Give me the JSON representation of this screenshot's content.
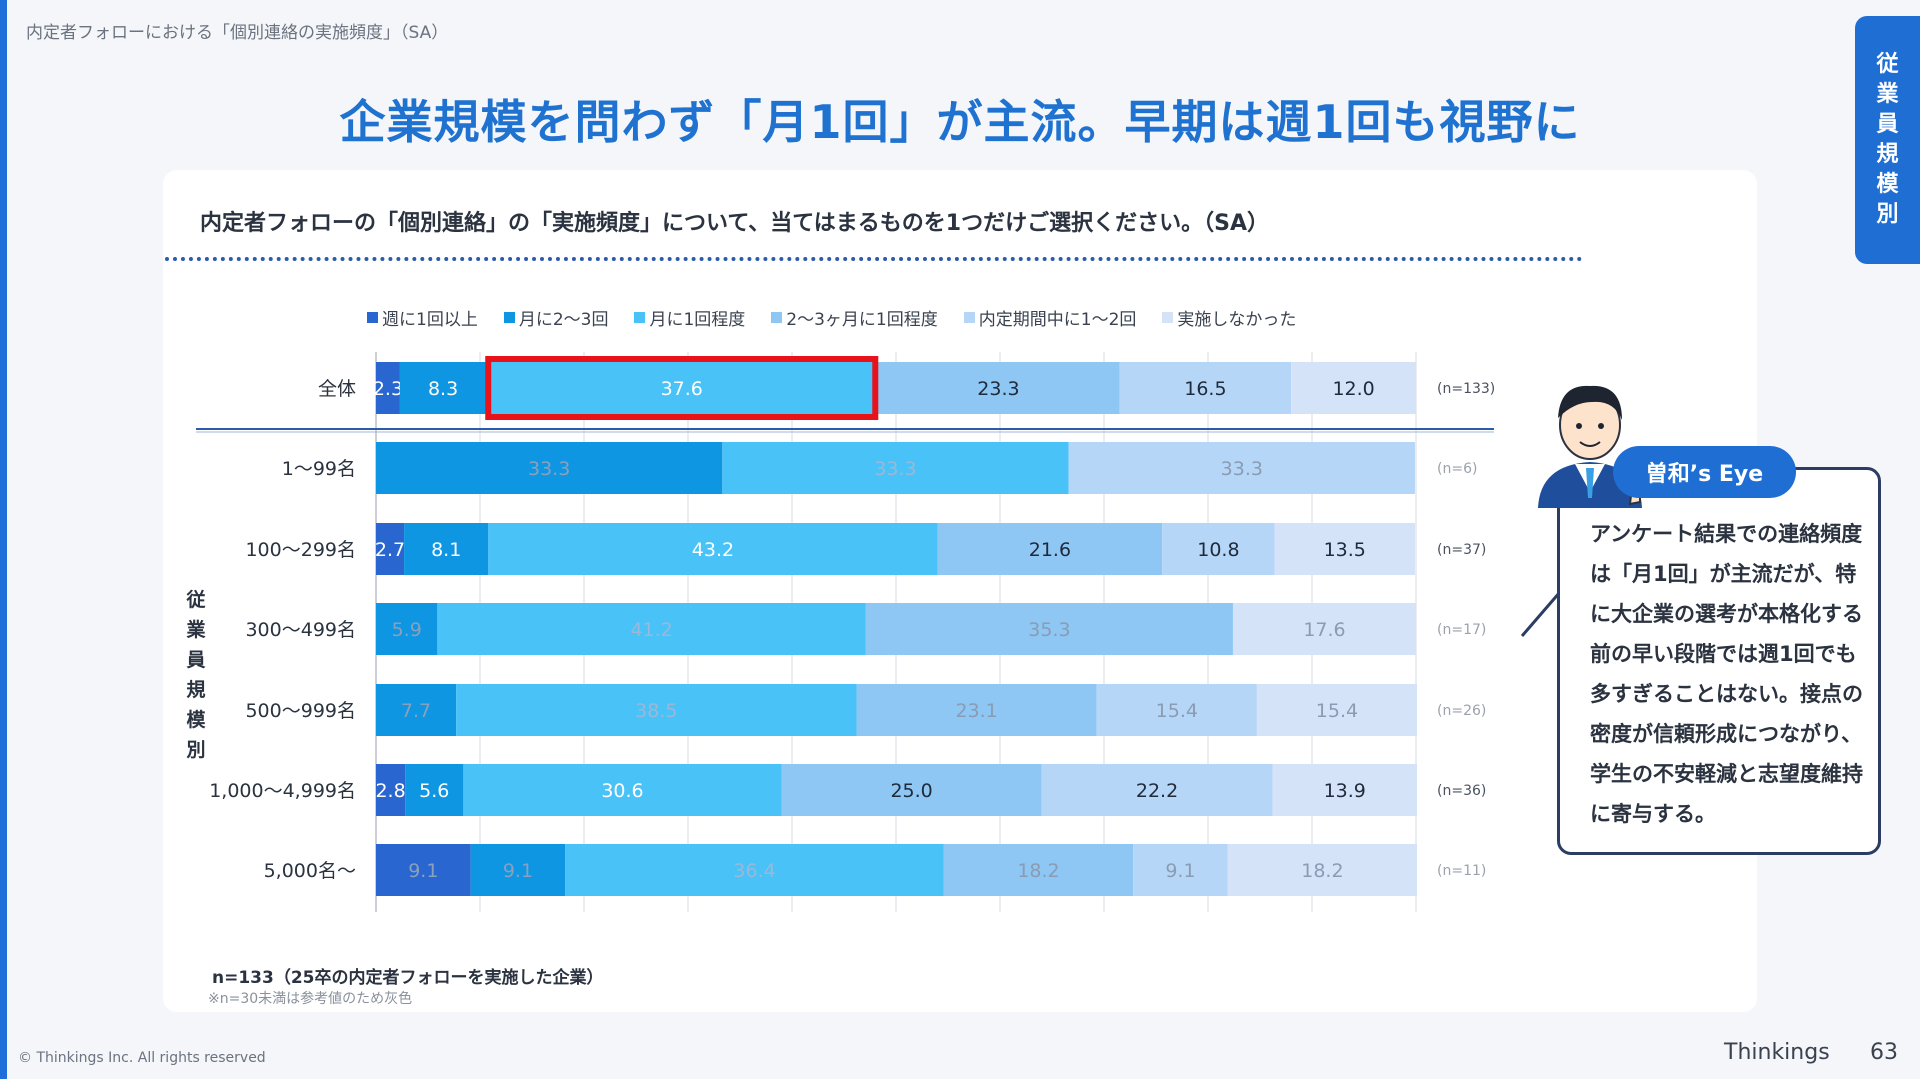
{
  "breadcrumb": "内定者フォローにおける「個別連絡の実施頻度」（SA）",
  "headline": "企業規模を問わず「月1回」が主流。早期は週1回も視野に",
  "side_tab": [
    "従",
    "業",
    "員",
    "規",
    "模",
    "別"
  ],
  "question": "内定者フォローの「個別連絡」の「実施頻度」について、当てはまるものを1つだけご選択ください。（SA）",
  "segment_label": [
    "従",
    "業",
    "員",
    "規",
    "模",
    "別"
  ],
  "colors": [
    "#2a66cf",
    "#0f96e2",
    "#49c2f8",
    "#8ec6f4",
    "#b6d6f8",
    "#d5e3f8"
  ],
  "chart_data": {
    "type": "bar",
    "orientation": "horizontal",
    "stacked": true,
    "xlim": [
      0,
      100
    ],
    "categories": [
      "全体",
      "1～99名",
      "100～299名",
      "300～499名",
      "500～999名",
      "1,000～4,999名",
      "5,000名～"
    ],
    "n_labels": [
      "(n=133)",
      "(n=6)",
      "(n=37)",
      "(n=17)",
      "(n=26)",
      "(n=36)",
      "(n=11)"
    ],
    "reference_value": [
      false,
      true,
      false,
      true,
      true,
      false,
      true
    ],
    "highlight": {
      "category": "全体",
      "series": "月に1回程度"
    },
    "series": [
      {
        "name": "週に1回以上",
        "values": [
          2.3,
          0,
          2.7,
          0,
          0,
          2.8,
          9.1
        ],
        "labels": [
          "2.3",
          "",
          "2.7",
          "",
          "",
          "2.8",
          "9.1"
        ]
      },
      {
        "name": "月に2～3回",
        "values": [
          8.3,
          33.3,
          8.1,
          5.9,
          7.7,
          5.6,
          9.1
        ],
        "labels": [
          "8.3",
          "33.3",
          "8.1",
          "5.9",
          "7.7",
          "5.6",
          "9.1"
        ]
      },
      {
        "name": "月に1回程度",
        "values": [
          37.6,
          33.3,
          43.2,
          41.2,
          38.5,
          30.6,
          36.4
        ],
        "labels": [
          "37.6",
          "33.3",
          "43.2",
          "41.2",
          "38.5",
          "30.6",
          "36.4"
        ]
      },
      {
        "name": "2～3ヶ月に1回程度",
        "values": [
          23.3,
          0,
          21.6,
          35.3,
          23.1,
          25.0,
          18.2
        ],
        "labels": [
          "23.3",
          "",
          "21.6",
          "35.3",
          "23.1",
          "25.0",
          "18.2"
        ]
      },
      {
        "name": "内定期間中に1～2回",
        "values": [
          16.5,
          33.3,
          10.8,
          0,
          15.4,
          22.2,
          9.1
        ],
        "labels": [
          "16.5",
          "33.3",
          "10.8",
          "",
          "15.4",
          "22.2",
          "9.1"
        ]
      },
      {
        "name": "実施しなかった",
        "values": [
          12.0,
          0,
          13.5,
          17.6,
          15.4,
          13.9,
          18.2
        ],
        "labels": [
          "12.0",
          "",
          "13.5",
          "17.6",
          "15.4",
          "13.9",
          "18.2"
        ]
      }
    ]
  },
  "notes": {
    "n_total": "n=133（25卒の内定者フォローを実施した企業）",
    "gray_note": "※n=30未満は参考値のため灰色"
  },
  "eye": {
    "badge": "曽和’s Eye",
    "text": "アンケート結果での連絡頻度は「月1回」が主流だが、特に大企業の選考が本格化する前の早い段階では週1回でも多すぎることはない。接点の密度が信頼形成につながり、学生の不安軽減と志望度維持に寄与する。"
  },
  "footer": {
    "copyright": "© Thinkings Inc. All rights reserved",
    "brand": "Thinkings",
    "page": "63"
  }
}
